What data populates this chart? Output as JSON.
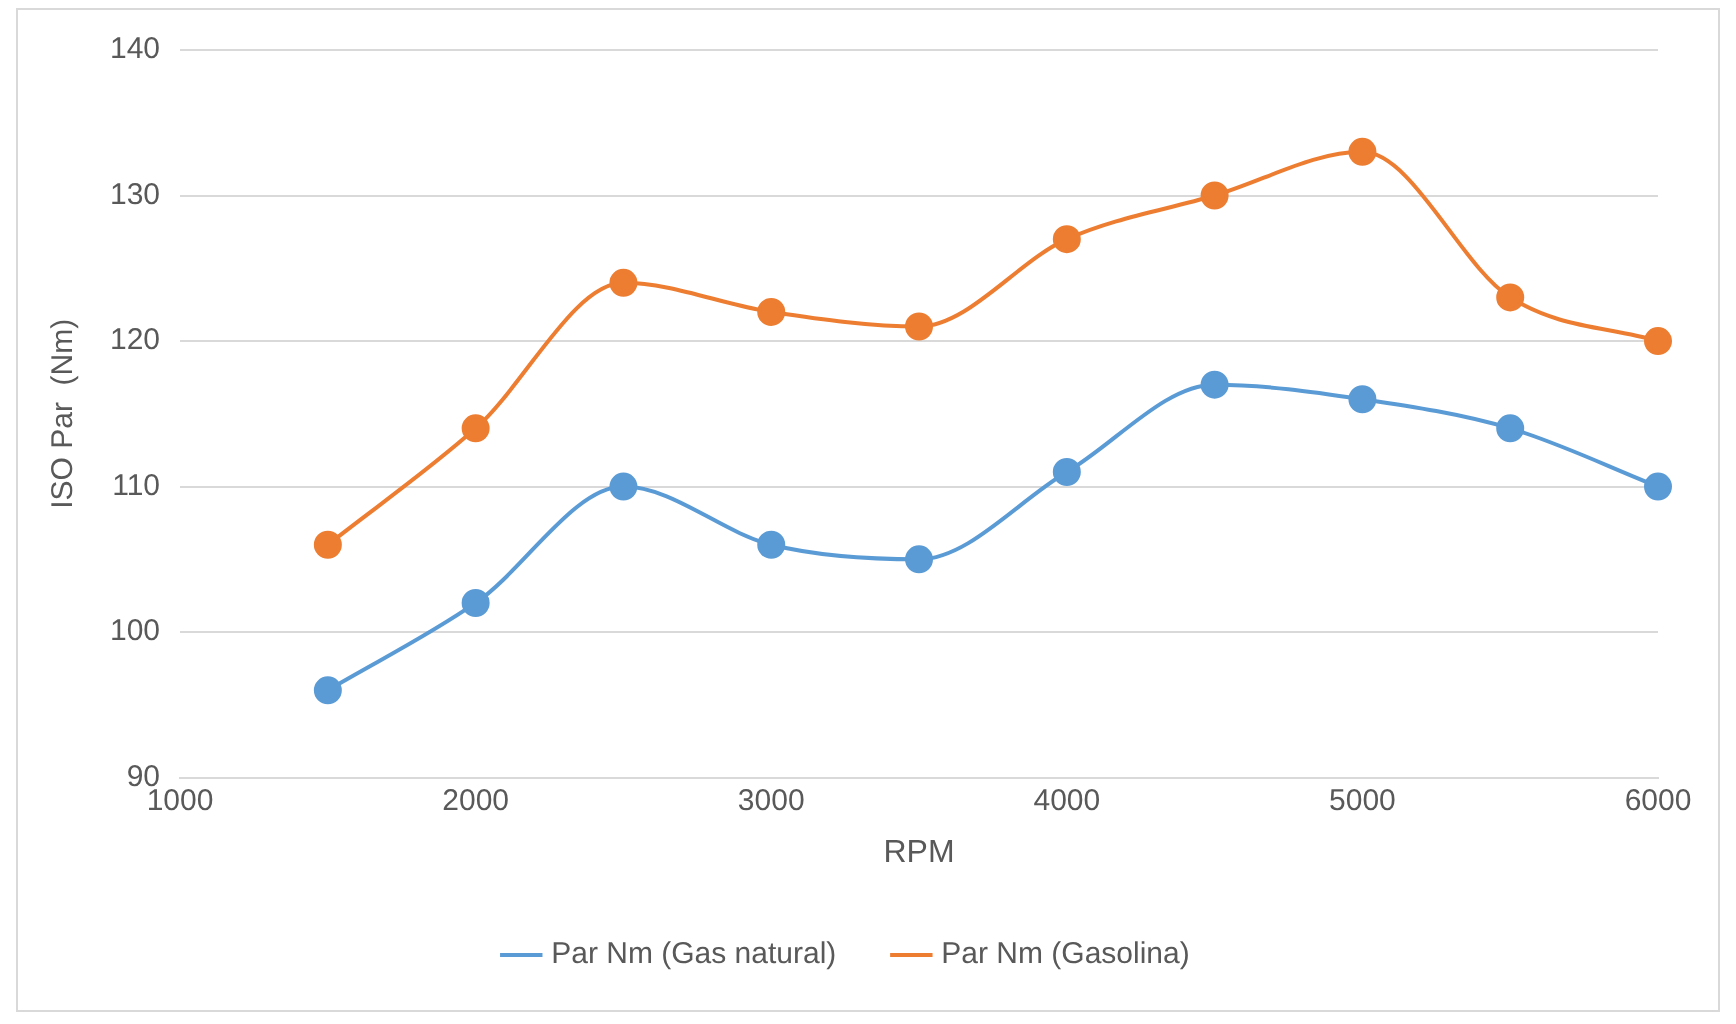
{
  "chart_data": {
    "type": "line",
    "xlabel": "RPM",
    "ylabel": "ISO Par  (Nm)",
    "x": [
      1500,
      2000,
      2500,
      3000,
      3500,
      4000,
      4500,
      5000,
      5500,
      6000
    ],
    "series": [
      {
        "name": "Par Nm (Gas natural)",
        "color": "#5b9bd5",
        "values": [
          96,
          102,
          110,
          106,
          105,
          111,
          117,
          116,
          114,
          110
        ]
      },
      {
        "name": "Par Nm (Gasolina)",
        "color": "#ed7d31",
        "values": [
          106,
          114,
          124,
          122,
          121,
          127,
          130,
          133,
          123,
          120
        ]
      }
    ],
    "xlim": [
      1000,
      6000
    ],
    "xticks": [
      1000,
      2000,
      3000,
      4000,
      5000,
      6000
    ],
    "ylim": [
      90,
      140
    ],
    "yticks": [
      90,
      100,
      110,
      120,
      130,
      140
    ],
    "grid": "y",
    "legend": "bottom",
    "marker": "circle",
    "line_style": "solid"
  }
}
